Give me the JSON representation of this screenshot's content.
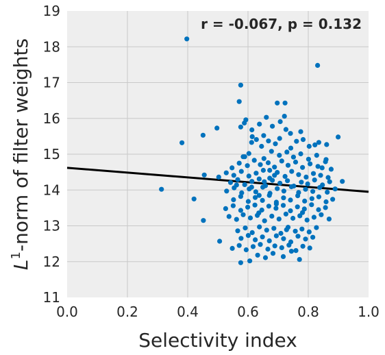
{
  "chart_data": {
    "type": "scatter",
    "xlabel": "Selectivity index",
    "ylabel_main": "L",
    "ylabel_sup": "1",
    "ylabel_rest": "-norm of filter weights",
    "annotation": "r = -0.067, p = 0.132",
    "xlim": [
      0.0,
      1.0
    ],
    "ylim": [
      11,
      19
    ],
    "xticks": [
      "0.0",
      "0.2",
      "0.4",
      "0.6",
      "0.8",
      "1.0"
    ],
    "yticks": [
      "11",
      "12",
      "13",
      "14",
      "15",
      "16",
      "17",
      "18",
      "19"
    ],
    "grid": true,
    "point_color": "#0072bd",
    "line_color": "#000000",
    "fit_line": {
      "x": [
        0.0,
        1.0
      ],
      "y": [
        14.62,
        13.95
      ]
    },
    "points": {
      "x": [
        0.397,
        0.313,
        0.381,
        0.831,
        0.576,
        0.697,
        0.723,
        0.571,
        0.721,
        0.497,
        0.451,
        0.588,
        0.576,
        0.681,
        0.638,
        0.614,
        0.775,
        0.652,
        0.726,
        0.783,
        0.835,
        0.861,
        0.899,
        0.612,
        0.628,
        0.645,
        0.668,
        0.691,
        0.705,
        0.742,
        0.761,
        0.803,
        0.822,
        0.584,
        0.603,
        0.653,
        0.678,
        0.704,
        0.729,
        0.751,
        0.775,
        0.801,
        0.828,
        0.859,
        0.547,
        0.571,
        0.598,
        0.621,
        0.641,
        0.667,
        0.688,
        0.712,
        0.733,
        0.758,
        0.781,
        0.806,
        0.832,
        0.857,
        0.876,
        0.455,
        0.503,
        0.528,
        0.553,
        0.578,
        0.603,
        0.627,
        0.651,
        0.672,
        0.697,
        0.723,
        0.745,
        0.768,
        0.793,
        0.817,
        0.841,
        0.866,
        0.542,
        0.566,
        0.589,
        0.613,
        0.637,
        0.658,
        0.681,
        0.706,
        0.731,
        0.752,
        0.777,
        0.798,
        0.821,
        0.847,
        0.871,
        0.913,
        0.529,
        0.554,
        0.579,
        0.604,
        0.626,
        0.649,
        0.673,
        0.697,
        0.719,
        0.744,
        0.768,
        0.791,
        0.815,
        0.838,
        0.863,
        0.889,
        0.421,
        0.552,
        0.576,
        0.601,
        0.624,
        0.648,
        0.671,
        0.694,
        0.718,
        0.741,
        0.765,
        0.788,
        0.812,
        0.835,
        0.859,
        0.881,
        0.526,
        0.551,
        0.576,
        0.599,
        0.623,
        0.646,
        0.669,
        0.693,
        0.717,
        0.741,
        0.764,
        0.787,
        0.811,
        0.834,
        0.857,
        0.452,
        0.537,
        0.562,
        0.584,
        0.608,
        0.631,
        0.655,
        0.679,
        0.703,
        0.726,
        0.749,
        0.772,
        0.796,
        0.819,
        0.843,
        0.869,
        0.566,
        0.591,
        0.614,
        0.638,
        0.662,
        0.686,
        0.709,
        0.733,
        0.757,
        0.779,
        0.803,
        0.827,
        0.506,
        0.577,
        0.601,
        0.624,
        0.648,
        0.671,
        0.694,
        0.718,
        0.742,
        0.766,
        0.791,
        0.815,
        0.548,
        0.571,
        0.594,
        0.617,
        0.641,
        0.666,
        0.689,
        0.712,
        0.736,
        0.759,
        0.782,
        0.805,
        0.576,
        0.606,
        0.632,
        0.658,
        0.683,
        0.717,
        0.744,
        0.771,
        0.593,
        0.613,
        0.661,
        0.707,
        0.589,
        0.741,
        0.672,
        0.637,
        0.781,
        0.654,
        0.694,
        0.728,
        0.846,
        0.612,
        0.636,
        0.688,
        0.562
      ],
      "y": [
        18.22,
        14.02,
        15.32,
        17.48,
        16.93,
        16.43,
        16.43,
        16.47,
        16.06,
        15.73,
        15.53,
        15.87,
        15.76,
        15.78,
        15.84,
        15.49,
        15.63,
        15.52,
        15.69,
        15.41,
        15.33,
        15.27,
        15.48,
        15.33,
        15.41,
        15.22,
        15.37,
        15.29,
        15.44,
        15.17,
        15.36,
        15.22,
        15.26,
        14.93,
        15.02,
        14.88,
        15.08,
        14.97,
        15.06,
        14.92,
        15.01,
        14.86,
        14.97,
        14.85,
        14.62,
        14.75,
        14.68,
        14.83,
        14.71,
        14.76,
        14.64,
        14.81,
        14.69,
        14.78,
        14.63,
        14.73,
        14.66,
        14.79,
        14.58,
        14.42,
        14.36,
        14.48,
        14.41,
        14.52,
        14.39,
        14.47,
        14.55,
        14.33,
        14.49,
        14.38,
        14.52,
        14.43,
        14.36,
        14.46,
        14.41,
        14.35,
        14.21,
        14.29,
        14.15,
        14.24,
        14.31,
        14.12,
        14.27,
        14.19,
        14.26,
        14.11,
        14.22,
        14.17,
        14.28,
        14.14,
        14.23,
        14.24,
        13.97,
        14.06,
        13.92,
        14.03,
        13.95,
        14.08,
        13.91,
        14.04,
        13.97,
        14.09,
        13.93,
        14.02,
        13.96,
        14.07,
        13.94,
        14.03,
        13.75,
        13.73,
        13.82,
        13.68,
        13.79,
        13.71,
        13.85,
        13.66,
        13.78,
        13.72,
        13.84,
        13.69,
        13.76,
        13.81,
        13.67,
        13.74,
        13.48,
        13.56,
        13.43,
        13.52,
        13.58,
        13.44,
        13.55,
        13.49,
        13.57,
        13.42,
        13.53,
        13.47,
        13.59,
        13.45,
        13.51,
        13.15,
        13.26,
        13.18,
        13.31,
        13.22,
        13.29,
        13.14,
        13.27,
        13.19,
        13.33,
        13.21,
        13.28,
        13.16,
        13.24,
        13.31,
        13.19,
        12.86,
        12.94,
        12.81,
        12.97,
        12.88,
        12.93,
        12.79,
        12.96,
        12.85,
        12.91,
        12.83,
        12.95,
        12.57,
        12.65,
        12.73,
        12.61,
        12.69,
        12.58,
        12.72,
        12.64,
        12.55,
        12.71,
        12.63,
        12.68,
        12.37,
        12.45,
        12.33,
        12.42,
        12.48,
        12.35,
        12.44,
        12.39,
        12.46,
        12.31,
        12.43,
        12.38,
        11.97,
        12.02,
        12.18,
        12.11,
        12.23,
        12.14,
        12.29,
        12.06,
        15.96,
        15.68,
        16.03,
        15.91,
        14.93,
        15.58,
        14.55,
        13.85,
        13.37,
        14.23,
        13.61,
        12.89,
        14.62,
        14.08,
        13.36,
        14.41,
        14.14
      ]
    }
  }
}
